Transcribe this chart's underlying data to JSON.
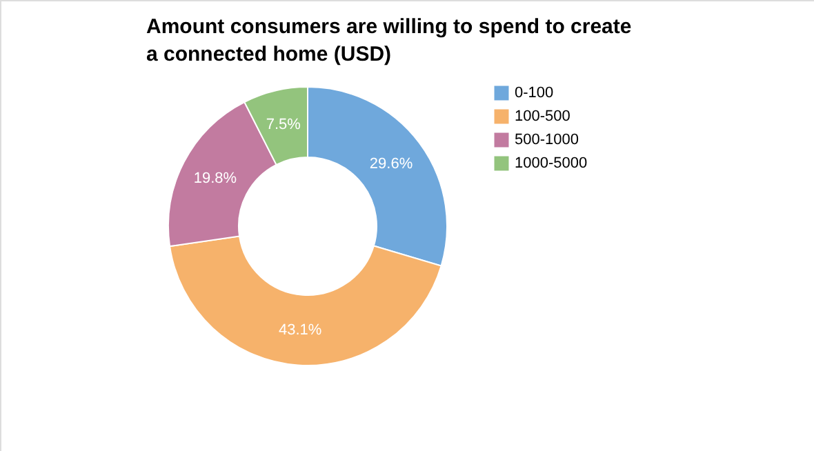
{
  "chart_data": {
    "type": "donut",
    "title": "Amount consumers are willing to spend to create a connected home (USD)",
    "categories": [
      "0-100",
      "100-500",
      "500-1000",
      "1000-5000"
    ],
    "values": [
      29.6,
      43.1,
      19.8,
      7.5
    ],
    "colors": [
      "#6fa8dc",
      "#f6b26b",
      "#c27ba0",
      "#93c47d"
    ],
    "value_labels": [
      "29.6%",
      "43.1%",
      "19.8%",
      "7.5%"
    ],
    "legend": "right"
  }
}
